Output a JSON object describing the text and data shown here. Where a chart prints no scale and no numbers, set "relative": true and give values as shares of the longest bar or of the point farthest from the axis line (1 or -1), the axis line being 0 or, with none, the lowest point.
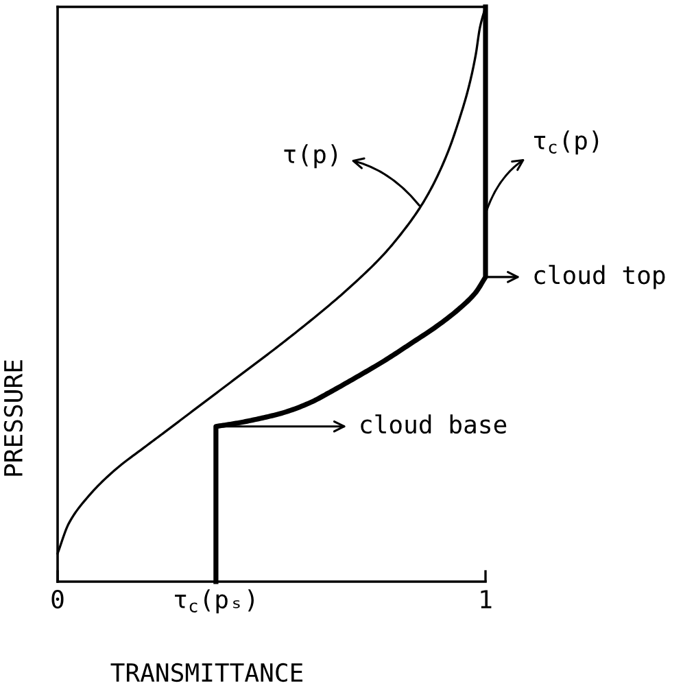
{
  "chart_data": {
    "type": "line",
    "xlabel": "TRANSMITTANCE",
    "ylabel": "PRESSURE",
    "relative": true,
    "xlim": [
      0,
      1
    ],
    "xticks": [
      0,
      {
        "value": 0.37,
        "label": "τ$_{c}$(pₛ)"
      },
      1
    ],
    "tick_labels": "x",
    "series": [
      {
        "color": "#000000",
        "x": [
          0,
          0.026,
          0.068,
          0.132,
          0.207,
          0.25,
          0.314,
          0.378,
          0.442,
          0.506,
          0.571,
          0.635,
          0.699,
          0.763,
          0.816,
          0.848,
          0.88,
          0.913,
          0.939,
          0.961,
          0.977,
          0.987,
          1
        ],
        "values": [
          0.049,
          0.101,
          0.145,
          0.193,
          0.236,
          0.26,
          0.296,
          0.332,
          0.368,
          0.404,
          0.442,
          0.481,
          0.523,
          0.57,
          0.618,
          0.652,
          0.694,
          0.749,
          0.805,
          0.861,
          0.916,
          0.964,
          1
        ]
      },
      {
        "color": "#000000",
        "x": [
          0.37,
          0.37,
          0.421,
          0.474,
          0.528,
          0.592,
          0.635,
          0.699,
          0.763,
          0.827,
          0.891,
          0.945,
          0.977,
          1,
          1
        ],
        "values": [
          0,
          0.27,
          0.276,
          0.284,
          0.294,
          0.312,
          0.329,
          0.356,
          0.384,
          0.415,
          0.447,
          0.479,
          0.503,
          0.53,
          1
        ]
      }
    ],
    "annotations": [
      {
        "text": "τ(p)",
        "x": 0.848,
        "y": 0.652
      },
      {
        "text": "τ$_{c}$(p)",
        "x": 1,
        "y": 0.64
      },
      {
        "text": "cloud top",
        "x": 1,
        "y": 0.53
      },
      {
        "text": "cloud base",
        "x": 0.37,
        "y": 0.27
      }
    ]
  }
}
